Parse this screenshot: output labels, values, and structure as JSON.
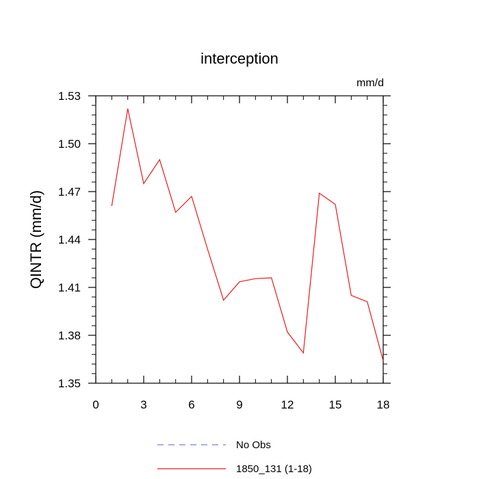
{
  "chart_data": {
    "type": "line",
    "title": "interception",
    "units_label": "mm/d",
    "xlabel": "",
    "ylabel": "QINTR  (mm/d)",
    "xlim": [
      0,
      18
    ],
    "ylim": [
      1.35,
      1.53
    ],
    "x_ticks": [
      "0",
      "3",
      "6",
      "9",
      "12",
      "15",
      "18"
    ],
    "y_ticks": [
      "1.35",
      "1.38",
      "1.41",
      "1.44",
      "1.47",
      "1.50",
      "1.53"
    ],
    "x": [
      1,
      2,
      3,
      4,
      5,
      6,
      7,
      8,
      9,
      10,
      11,
      12,
      13,
      14,
      15,
      16,
      17,
      18
    ],
    "series": [
      {
        "name": "1850_131 (1-18)",
        "color": "#e8191a",
        "style": "solid",
        "values": [
          1.461,
          1.522,
          1.475,
          1.49,
          1.457,
          1.467,
          1.434,
          1.402,
          1.4135,
          1.4155,
          1.416,
          1.382,
          1.369,
          1.469,
          1.462,
          1.405,
          1.401,
          1.364
        ]
      }
    ],
    "legend": [
      {
        "label": "No Obs",
        "color": "#7b7bdf",
        "style": "dashed"
      },
      {
        "label": "1850_131 (1-18)",
        "color": "#e8191a",
        "style": "solid"
      }
    ],
    "legend_position": "bottom",
    "grid": false
  }
}
